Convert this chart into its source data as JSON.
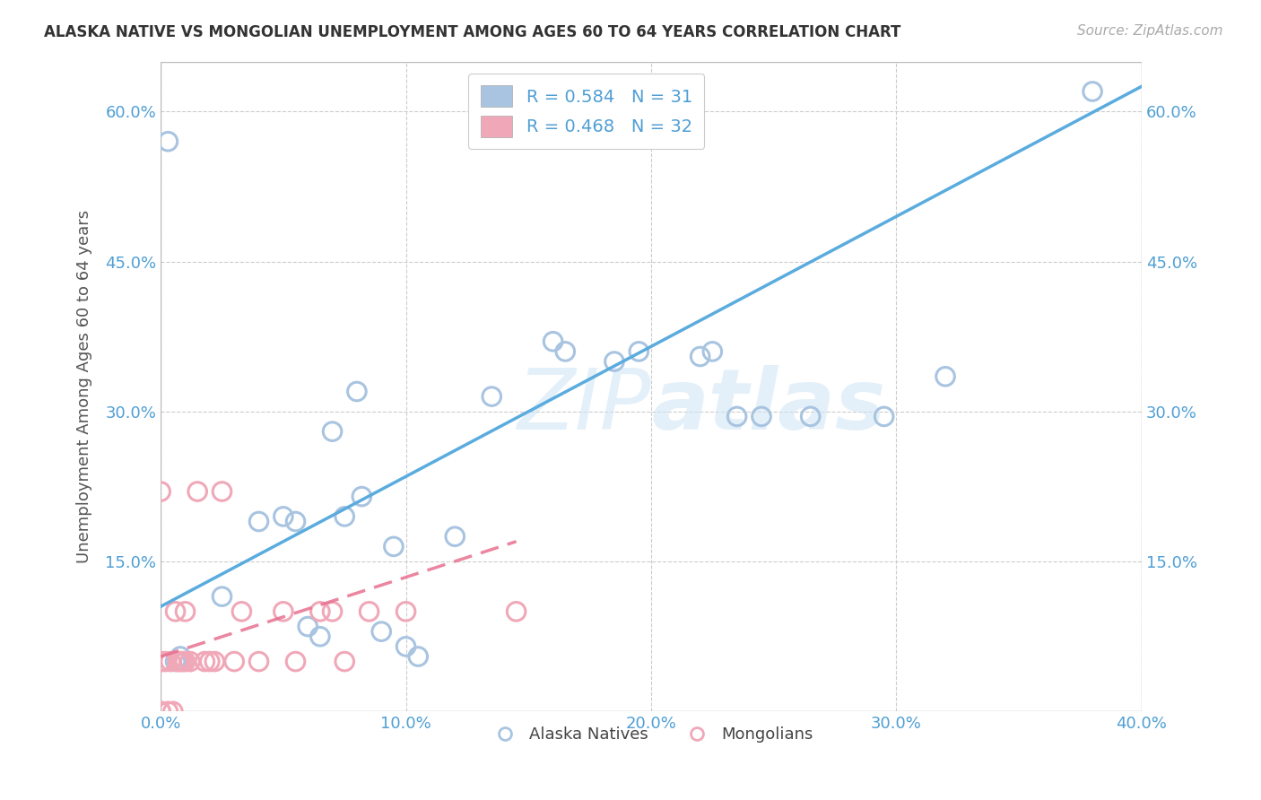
{
  "title": "ALASKA NATIVE VS MONGOLIAN UNEMPLOYMENT AMONG AGES 60 TO 64 YEARS CORRELATION CHART",
  "source": "Source: ZipAtlas.com",
  "ylabel": "Unemployment Among Ages 60 to 64 years",
  "xlim": [
    0.0,
    0.4
  ],
  "ylim": [
    0.0,
    0.65
  ],
  "xticks": [
    0.0,
    0.1,
    0.2,
    0.3,
    0.4
  ],
  "yticks": [
    0.0,
    0.15,
    0.3,
    0.45,
    0.6
  ],
  "xticklabels": [
    "0.0%",
    "10.0%",
    "20.0%",
    "30.0%",
    "40.0%"
  ],
  "yticklabels_left": [
    "",
    "15.0%",
    "30.0%",
    "45.0%",
    "60.0%"
  ],
  "yticklabels_right": [
    "",
    "15.0%",
    "30.0%",
    "45.0%",
    "60.0%"
  ],
  "alaska_R": 0.584,
  "alaska_N": 31,
  "mongolian_R": 0.468,
  "mongolian_N": 32,
  "alaska_color": "#a8c4e0",
  "mongolian_color": "#f0a8b8",
  "alaska_line_color": "#5aabde",
  "mongolian_line_color": "#e87090",
  "background_color": "#ffffff",
  "grid_color": "#cccccc",
  "tick_color": "#4f9fd4",
  "watermark": "ZIPatlas",
  "alaska_x": [
    0.003,
    0.006,
    0.008,
    0.025,
    0.04,
    0.05,
    0.055,
    0.06,
    0.065,
    0.07,
    0.075,
    0.08,
    0.082,
    0.09,
    0.095,
    0.1,
    0.105,
    0.12,
    0.135,
    0.16,
    0.165,
    0.185,
    0.195,
    0.22,
    0.225,
    0.235,
    0.245,
    0.265,
    0.295,
    0.32,
    0.38
  ],
  "alaska_y": [
    0.57,
    0.05,
    0.055,
    0.115,
    0.19,
    0.195,
    0.19,
    0.085,
    0.075,
    0.28,
    0.195,
    0.32,
    0.215,
    0.08,
    0.165,
    0.065,
    0.055,
    0.175,
    0.315,
    0.37,
    0.36,
    0.35,
    0.36,
    0.355,
    0.36,
    0.295,
    0.295,
    0.295,
    0.295,
    0.335,
    0.62
  ],
  "mongolian_x": [
    0.0,
    0.0,
    0.0,
    0.0,
    0.0,
    0.002,
    0.003,
    0.004,
    0.005,
    0.006,
    0.007,
    0.008,
    0.009,
    0.01,
    0.01,
    0.012,
    0.015,
    0.018,
    0.02,
    0.022,
    0.025,
    0.03,
    0.033,
    0.04,
    0.05,
    0.055,
    0.065,
    0.07,
    0.075,
    0.085,
    0.1,
    0.145
  ],
  "mongolian_y": [
    0.0,
    0.0,
    0.05,
    0.05,
    0.22,
    0.05,
    0.0,
    0.05,
    0.0,
    0.1,
    0.05,
    0.05,
    0.05,
    0.05,
    0.1,
    0.05,
    0.22,
    0.05,
    0.05,
    0.05,
    0.22,
    0.05,
    0.1,
    0.05,
    0.1,
    0.05,
    0.1,
    0.1,
    0.05,
    0.1,
    0.1,
    0.1
  ],
  "alaska_line_x": [
    0.0,
    0.4
  ],
  "alaska_line_y": [
    0.105,
    0.625
  ],
  "mongolian_line_x": [
    0.0,
    0.145
  ],
  "mongolian_line_y": [
    0.055,
    0.17
  ]
}
